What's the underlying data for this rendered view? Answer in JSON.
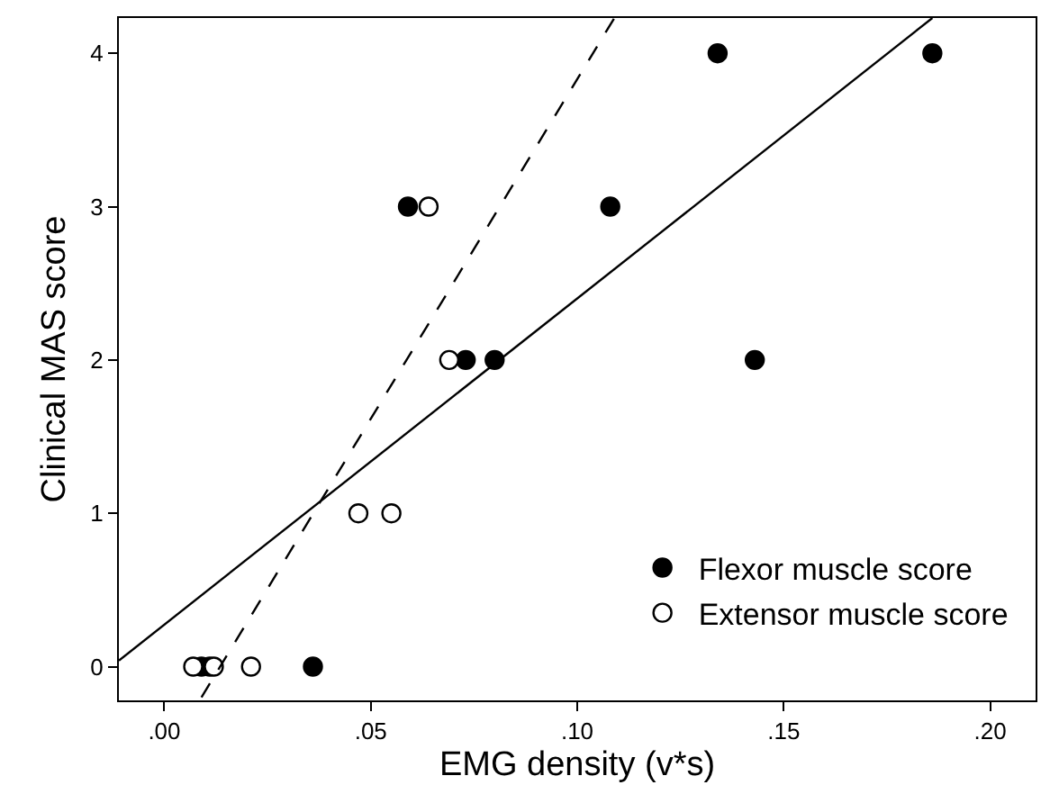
{
  "chart_data": {
    "type": "scatter",
    "xlabel": "EMG density (v*s)",
    "ylabel": "Clinical MAS score",
    "xlim": [
      -0.011,
      0.211
    ],
    "ylim": [
      -0.22,
      4.23
    ],
    "xticks": [
      {
        "value": 0,
        "label": ".00"
      },
      {
        "value": 0.05,
        "label": ".05"
      },
      {
        "value": 0.1,
        "label": ".10"
      },
      {
        "value": 0.15,
        "label": ".15"
      },
      {
        "value": 0.2,
        "label": ".20"
      }
    ],
    "yticks": [
      0,
      1,
      2,
      3,
      4
    ],
    "legend": "bottom right",
    "marker": "circle",
    "series": [
      {
        "name": "Flexor muscle score",
        "color": "#000000",
        "x": [
          0.059,
          0.108,
          0.134,
          0.186,
          0.143,
          0.073,
          0.08,
          0.036,
          0.009,
          0.011
        ],
        "values": [
          3,
          3,
          4,
          4,
          2,
          2,
          2,
          0,
          0,
          0
        ]
      },
      {
        "name": "Extensor muscle score",
        "color": "#ffffff",
        "x": [
          0.064,
          0.069,
          0.047,
          0.055,
          0.021,
          0.007,
          0.012
        ],
        "values": [
          3,
          2,
          1,
          1,
          0,
          0,
          0
        ]
      },
      {
        "type": "line",
        "color": "#000000",
        "line_style": "solid",
        "marker": "none",
        "x": [
          -0.011,
          0.186
        ],
        "values": [
          0.04,
          4.23
        ]
      },
      {
        "type": "line",
        "color": "#000000",
        "line_style": "dashed",
        "marker": "none",
        "x": [
          0.009,
          0.109
        ],
        "values": [
          -0.2,
          4.23
        ]
      }
    ]
  }
}
